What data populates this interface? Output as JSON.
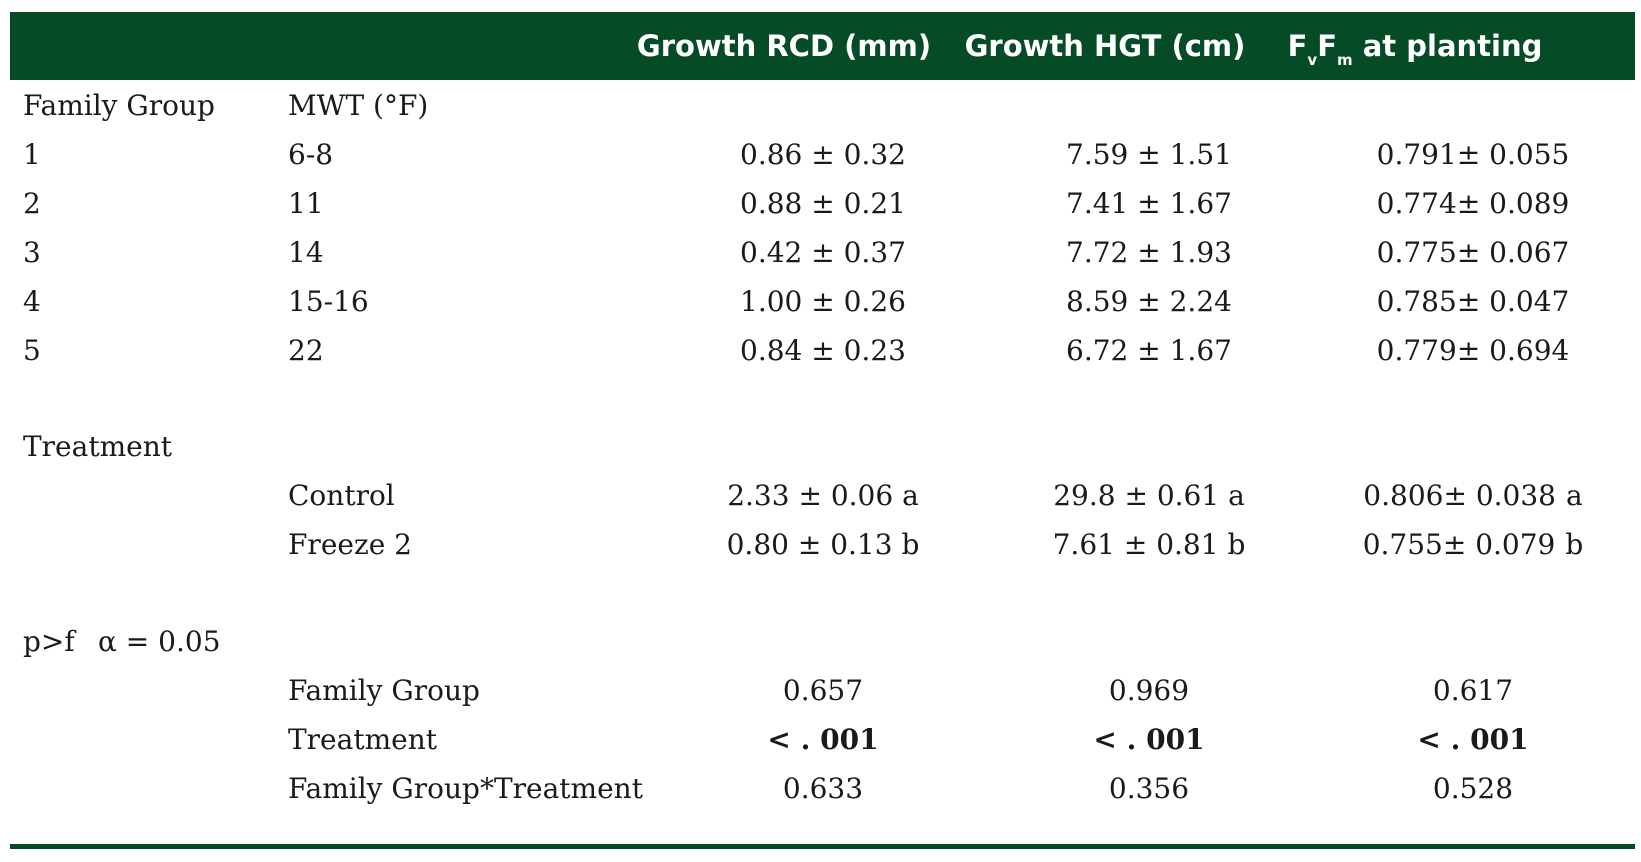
{
  "header": {
    "col_rcd": "Growth RCD (mm)",
    "col_hgt": "Growth HGT (cm)",
    "col_fvfm_f1": "F",
    "col_fvfm_sub1": "v",
    "col_fvfm_f2": "F",
    "col_fvfm_sub2": "m",
    "col_fvfm_rest": " at planting"
  },
  "family_section": {
    "label": "Family Group",
    "mwt_label": "MWT (°F)",
    "rows": [
      {
        "group": "1",
        "mwt": "6-8",
        "rcd": "0.86 ± 0.32",
        "hgt": "7.59 ± 1.51",
        "fvfm": "0.791± 0.055"
      },
      {
        "group": "2",
        "mwt": "11",
        "rcd": "0.88 ± 0.21",
        "hgt": "7.41 ± 1.67",
        "fvfm": "0.774± 0.089"
      },
      {
        "group": "3",
        "mwt": "14",
        "rcd": "0.42 ± 0.37",
        "hgt": "7.72 ± 1.93",
        "fvfm": "0.775± 0.067"
      },
      {
        "group": "4",
        "mwt": "15-16",
        "rcd": "1.00 ± 0.26",
        "hgt": "8.59 ± 2.24",
        "fvfm": "0.785± 0.047"
      },
      {
        "group": "5",
        "mwt": "22",
        "rcd": "0.84 ± 0.23",
        "hgt": "6.72 ± 1.67",
        "fvfm": "0.779± 0.694"
      }
    ]
  },
  "treatment_section": {
    "label": "Treatment",
    "rows": [
      {
        "name": "Control",
        "rcd": "2.33 ± 0.06 a",
        "hgt": "29.8 ± 0.61 a",
        "fvfm": "0.806± 0.038",
        "fvfm_letter": "a"
      },
      {
        "name": "Freeze 2",
        "rcd": "0.80 ± 0.13 b",
        "hgt": "7.61 ± 0.81 b",
        "fvfm": "0.755± 0.079",
        "fvfm_letter": "b"
      }
    ]
  },
  "stats_section": {
    "label": "p>f",
    "alpha": "α = 0.05",
    "rows": [
      {
        "name": "Family Group",
        "rcd": "0.657",
        "hgt": "0.969",
        "fvfm": "0.617",
        "bold": false
      },
      {
        "name": "Treatment",
        "rcd": "< . 001",
        "hgt": "< . 001",
        "fvfm": "< . 001",
        "bold": true
      },
      {
        "name": "Family Group*Treatment",
        "rcd": "0.633",
        "hgt": "0.356",
        "fvfm": "0.528",
        "bold": false
      }
    ]
  },
  "colors": {
    "header_bg": "#044b26",
    "header_text": "#ffffff",
    "body_text": "#1a1a1a"
  }
}
